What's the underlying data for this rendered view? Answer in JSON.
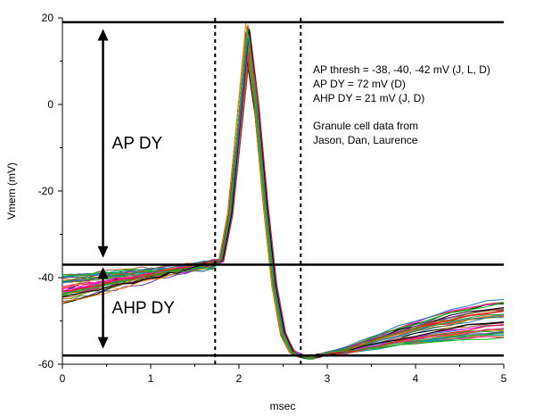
{
  "chart_data": {
    "type": "line",
    "title": "",
    "xlabel": "msec",
    "ylabel": "Vmem (mV)",
    "xlim": [
      0,
      5
    ],
    "ylim": [
      -60,
      20
    ],
    "x_ticks": [
      0,
      1,
      2,
      3,
      4,
      5
    ],
    "y_ticks": [
      -60,
      -40,
      -20,
      0,
      20
    ],
    "grid": false,
    "legend": "none",
    "trace_count": 40,
    "trace_colors": [
      "#000000",
      "#e31a1c",
      "#1f78b4",
      "#33a02c",
      "#ff00ff",
      "#6a3d9a",
      "#00a0a0",
      "#b15928",
      "#7a7a00",
      "#ff7f00",
      "#ff1493",
      "#00c000"
    ],
    "representative_trace": {
      "x": [
        0,
        0.5,
        1.0,
        1.5,
        1.7,
        1.8,
        1.9,
        2.0,
        2.1,
        2.2,
        2.3,
        2.4,
        2.5,
        2.6,
        2.7,
        2.8,
        2.9,
        3.0,
        3.5,
        4.0,
        4.5,
        5.0
      ],
      "y": [
        -41,
        -40,
        -39.5,
        -38,
        -37.5,
        -36,
        -25,
        -3,
        19,
        2,
        -22,
        -42,
        -53,
        -57,
        -58,
        -58.5,
        -58,
        -57.5,
        -55.5,
        -53.5,
        -51.5,
        -50
      ]
    },
    "onset_traces": {
      "note_x": [
        0,
        1.7
      ],
      "start_y": [
        -39,
        -46
      ],
      "end_y": [
        -36,
        -38
      ]
    },
    "recovery_traces": {
      "x_range": [
        3.0,
        5.0
      ],
      "end_y": [
        -45,
        -54
      ]
    },
    "reference_lines": {
      "horizontal_y": [
        19,
        -37,
        -58
      ],
      "vertical_dashed_x": [
        1.73,
        2.7
      ]
    },
    "arrows": [
      {
        "label": "AP DY",
        "y_from": 17,
        "y_to": -35
      },
      {
        "label": "AHP DY",
        "y_from": -38,
        "y_to": -56
      }
    ],
    "annotations": [
      "AP thresh = -38, -40, -42 mV (J, L, D)",
      "AP DY = 72 mV (D)",
      "AHP DY = 21 mV (J, D)",
      "",
      "Granule cell data from",
      "Jason, Dan, Laurence"
    ]
  }
}
